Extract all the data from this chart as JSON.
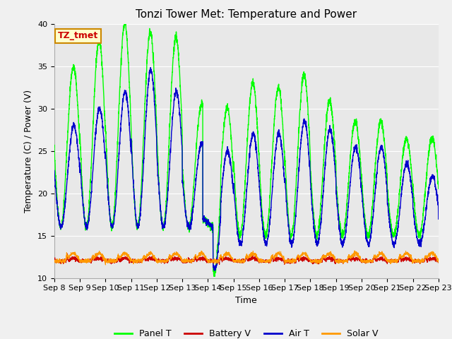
{
  "title": "Tonzi Tower Met: Temperature and Power",
  "xlabel": "Time",
  "ylabel": "Temperature (C) / Power (V)",
  "ylim": [
    10,
    40
  ],
  "tick_labels": [
    "Sep 8",
    "Sep 9",
    "Sep 10",
    "Sep 11",
    "Sep 12",
    "Sep 13",
    "Sep 14",
    "Sep 15",
    "Sep 16",
    "Sep 17",
    "Sep 18",
    "Sep 19",
    "Sep 20",
    "Sep 21",
    "Sep 22",
    "Sep 23"
  ],
  "annotation_text": "TZ_tmet",
  "annotation_color": "#cc0000",
  "annotation_bg": "#ffffcc",
  "annotation_edge": "#cc8800",
  "background_color": "#e8e8e8",
  "outer_bg": "#f0f0f0",
  "panel_t_color": "#00ff00",
  "air_t_color": "#0000cc",
  "battery_v_color": "#cc0000",
  "solar_v_color": "#ff9900",
  "title_fontsize": 11,
  "axis_fontsize": 9,
  "tick_fontsize": 8
}
